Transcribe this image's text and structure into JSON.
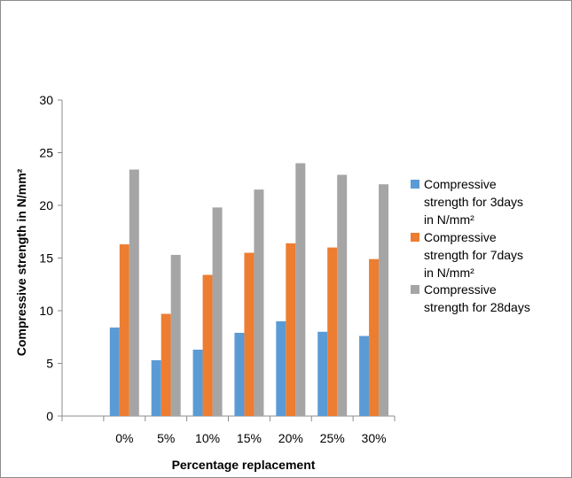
{
  "chart_data": {
    "type": "bar",
    "title": "",
    "xlabel": "Percentage replacement",
    "ylabel": "Compressive strength in N/mm²",
    "ylim": [
      0,
      30
    ],
    "yticks": [
      0,
      5,
      10,
      15,
      20,
      25,
      30
    ],
    "categories": [
      "",
      "0%",
      "5%",
      "10%",
      "15%",
      "20%",
      "25%",
      "30%"
    ],
    "series": [
      {
        "name_lines": [
          "Compressive",
          "strength for 3days",
          "in N/mm²"
        ],
        "color": "#5b9bd5",
        "values": [
          null,
          8.4,
          5.3,
          6.3,
          7.9,
          9.0,
          8.0,
          7.6
        ]
      },
      {
        "name_lines": [
          "Compressive",
          "strength for 7days",
          "in N/mm²"
        ],
        "color": "#ed7d31",
        "values": [
          null,
          16.3,
          9.7,
          13.4,
          15.5,
          16.4,
          16.0,
          14.9
        ]
      },
      {
        "name_lines": [
          "Compressive",
          "strength for 28days"
        ],
        "color": "#a5a5a5",
        "values": [
          null,
          23.4,
          15.3,
          19.8,
          21.5,
          24.0,
          22.9,
          22.0
        ]
      }
    ],
    "grid": false,
    "legend_position": "right"
  }
}
